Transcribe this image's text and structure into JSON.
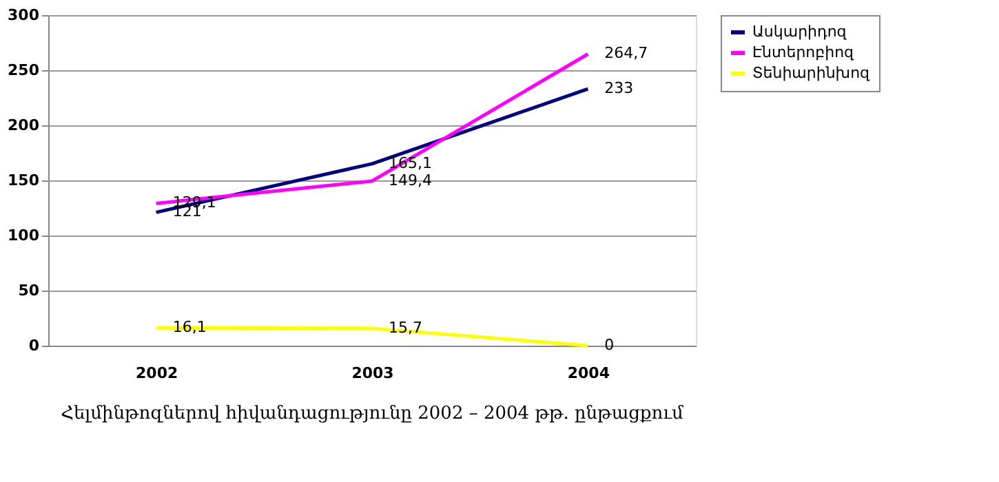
{
  "chart_data": {
    "type": "line",
    "title": "Հելմինթոզներով հիվանդացությունը 2002 – 2004 թթ. ընթացքում",
    "categories": [
      "2002",
      "2003",
      "2004"
    ],
    "series": [
      {
        "name": "Ասկարիդոզ",
        "color": "#000080",
        "values": [
          121,
          165.1,
          233
        ],
        "value_labels": [
          "121",
          "165,1",
          "233"
        ]
      },
      {
        "name": "Էնտերոբիոզ",
        "color": "#ff00ff",
        "values": [
          129.1,
          149.4,
          264.7
        ],
        "value_labels": [
          "129,1",
          "149,4",
          "264,7"
        ]
      },
      {
        "name": "Տենիարինխոզ",
        "color": "#ffff00",
        "values": [
          16.1,
          15.7,
          0
        ],
        "value_labels": [
          "16,1",
          "15,7",
          "0"
        ]
      }
    ],
    "ylim": [
      0,
      300
    ],
    "yticks": [
      0,
      50,
      100,
      150,
      200,
      250,
      300
    ],
    "grid": "y",
    "legend": "right",
    "marker": "none",
    "line_style": "solid"
  }
}
